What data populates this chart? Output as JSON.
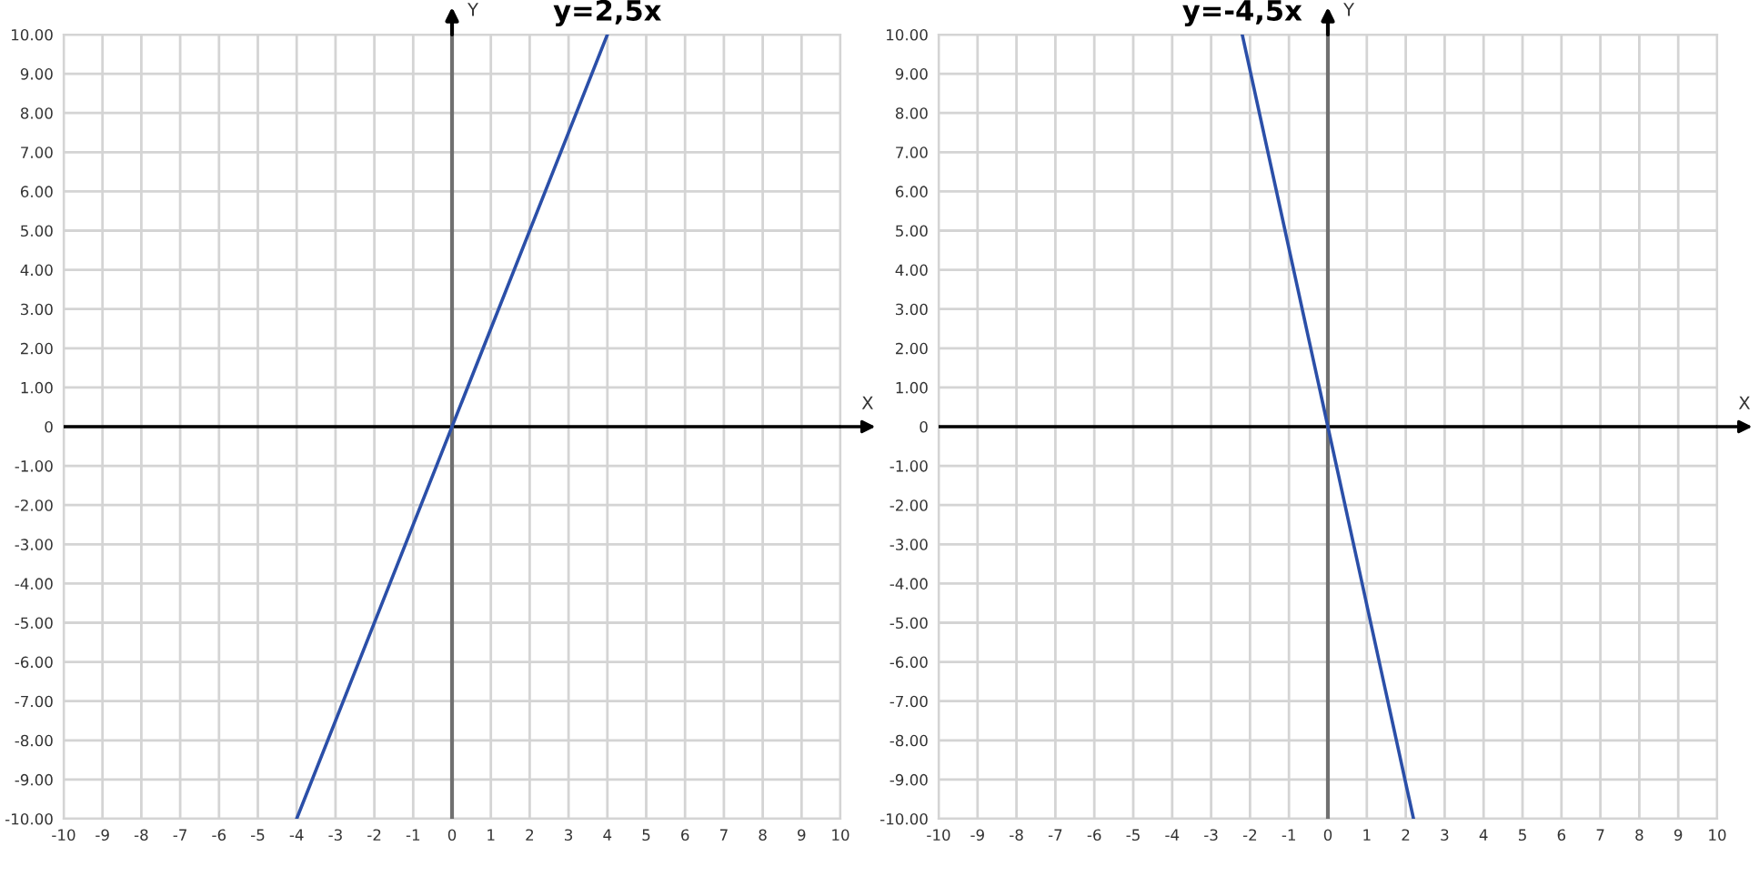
{
  "chart_data": [
    {
      "type": "line",
      "title": "y=2,5x",
      "xlabel": "X",
      "ylabel": "Y",
      "series": [
        {
          "color": "#2b4fa8",
          "x": [
            -4,
            4
          ],
          "values": [
            -10,
            10
          ]
        }
      ],
      "xlim": [
        -10,
        10
      ],
      "xticks": [
        -10,
        -9,
        -8,
        -7,
        -6,
        -5,
        -4,
        -3,
        -2,
        -1,
        0,
        1,
        2,
        3,
        4,
        5,
        6,
        7,
        8,
        9,
        10
      ],
      "ylim": [
        -10,
        10
      ],
      "yticks": [
        {
          "value": -10,
          "label": "-10.00"
        },
        {
          "value": -9,
          "label": "-9.00"
        },
        {
          "value": -8,
          "label": "-8.00"
        },
        {
          "value": -7,
          "label": "-7.00"
        },
        {
          "value": -6,
          "label": "-6.00"
        },
        {
          "value": -5,
          "label": "-5.00"
        },
        {
          "value": -4,
          "label": "-4.00"
        },
        {
          "value": -3,
          "label": "-3.00"
        },
        {
          "value": -2,
          "label": "-2.00"
        },
        {
          "value": -1,
          "label": "-1.00"
        },
        0,
        {
          "value": 1,
          "label": "1.00"
        },
        {
          "value": 2,
          "label": "2.00"
        },
        {
          "value": 3,
          "label": "3.00"
        },
        {
          "value": 4,
          "label": "4.00"
        },
        {
          "value": 5,
          "label": "5.00"
        },
        {
          "value": 6,
          "label": "6.00"
        },
        {
          "value": 7,
          "label": "7.00"
        },
        {
          "value": 8,
          "label": "8.00"
        },
        {
          "value": 9,
          "label": "9.00"
        },
        {
          "value": 10,
          "label": "10.00"
        }
      ],
      "ref_lines": [
        {
          "axis": "y",
          "value": 0,
          "color": "#000000"
        },
        {
          "axis": "x",
          "value": 0,
          "color": "#707070"
        }
      ],
      "grid": true,
      "legend": false,
      "marker": "none",
      "line_style": "solid"
    },
    {
      "type": "line",
      "title": "y=-4,5x",
      "xlabel": "X",
      "ylabel": "Y",
      "series": [
        {
          "color": "#2b4fa8",
          "x": [
            -2.2,
            2.2
          ],
          "values": [
            10,
            -10
          ]
        }
      ],
      "xlim": [
        -10,
        10
      ],
      "xticks": [
        -10,
        -9,
        -8,
        -7,
        -6,
        -5,
        -4,
        -3,
        -2,
        -1,
        0,
        1,
        2,
        3,
        4,
        5,
        6,
        7,
        8,
        9,
        10
      ],
      "ylim": [
        -10,
        10
      ],
      "yticks": [
        {
          "value": -10,
          "label": "-10.00"
        },
        {
          "value": -9,
          "label": "-9.00"
        },
        {
          "value": -8,
          "label": "-8.00"
        },
        {
          "value": -7,
          "label": "-7.00"
        },
        {
          "value": -6,
          "label": "-6.00"
        },
        {
          "value": -5,
          "label": "-5.00"
        },
        {
          "value": -4,
          "label": "-4.00"
        },
        {
          "value": -3,
          "label": "-3.00"
        },
        {
          "value": -2,
          "label": "-2.00"
        },
        {
          "value": -1,
          "label": "-1.00"
        },
        0,
        {
          "value": 1,
          "label": "1.00"
        },
        {
          "value": 2,
          "label": "2.00"
        },
        {
          "value": 3,
          "label": "3.00"
        },
        {
          "value": 4,
          "label": "4.00"
        },
        {
          "value": 5,
          "label": "5.00"
        },
        {
          "value": 6,
          "label": "6.00"
        },
        {
          "value": 7,
          "label": "7.00"
        },
        {
          "value": 8,
          "label": "8.00"
        },
        {
          "value": 9,
          "label": "9.00"
        },
        {
          "value": 10,
          "label": "10.00"
        }
      ],
      "ref_lines": [
        {
          "axis": "y",
          "value": 0,
          "color": "#000000"
        },
        {
          "axis": "x",
          "value": 0,
          "color": "#707070"
        }
      ],
      "grid": true,
      "legend": false,
      "marker": "none",
      "line_style": "solid"
    }
  ]
}
